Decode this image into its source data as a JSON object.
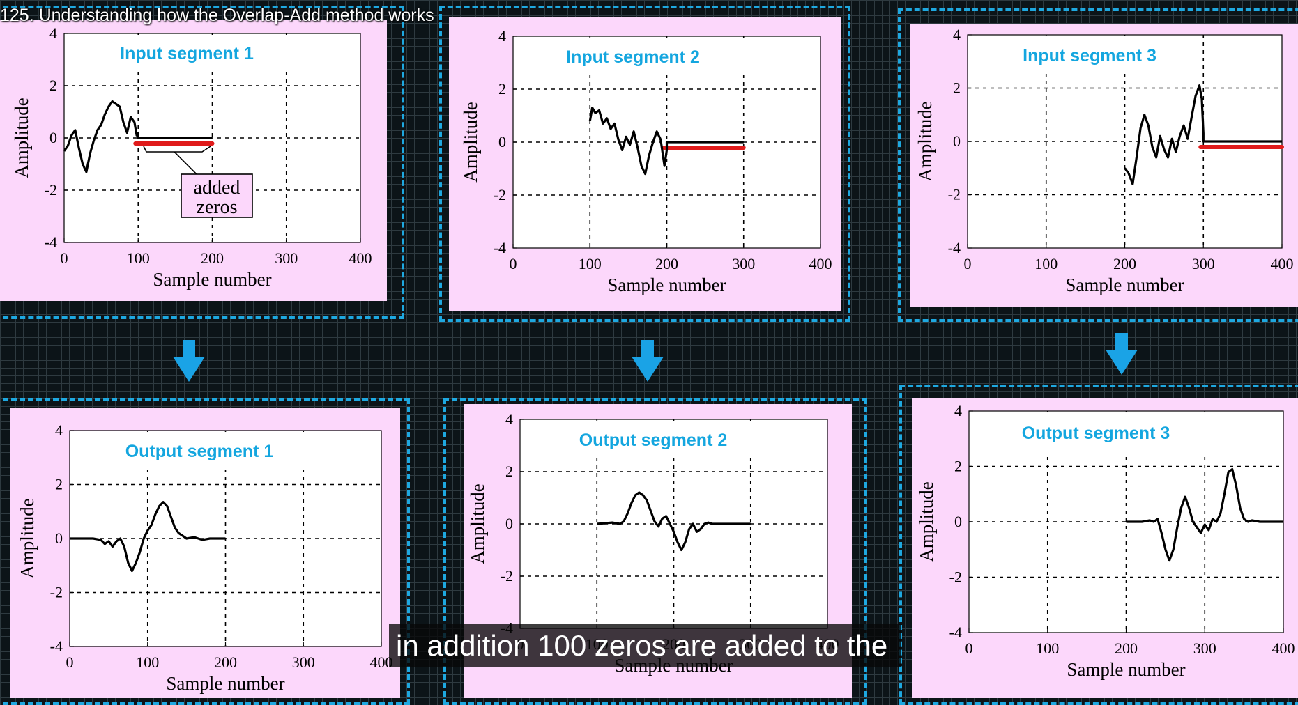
{
  "video_title": "125. Understanding how the Overlap-Add method works",
  "caption": "in addition 100 zeros are added to the",
  "colors": {
    "panel_bg": "#fcd7fb",
    "title_color": "#14a6df",
    "dashed_frame": "#1ea8e0",
    "zero_pad_marker": "#e01b1b",
    "signal": "#000000"
  },
  "annotation": {
    "line1": "added",
    "line2": "zeros"
  },
  "chart_data": [
    {
      "type": "line",
      "title": "Input segment 1",
      "xlabel": "Sample number",
      "ylabel": "Amplitude",
      "xlim": [
        0,
        400
      ],
      "ylim": [
        -4,
        4
      ],
      "xticks": [
        "0",
        "100",
        "200",
        "300",
        "400"
      ],
      "yticks": [
        "-4",
        "-2",
        "0",
        "2",
        "4"
      ],
      "grid": true,
      "zero_pad_range": [
        100,
        200
      ],
      "series": [
        {
          "x": [
            0,
            5,
            10,
            15,
            20,
            25,
            30,
            35,
            40,
            45,
            50,
            55,
            60,
            65,
            70,
            75,
            80,
            85,
            90,
            95,
            98,
            100,
            100,
            150,
            200
          ],
          "y": [
            -0.5,
            -0.3,
            0.1,
            0.3,
            -0.4,
            -1.0,
            -1.3,
            -0.6,
            -0.1,
            0.3,
            0.5,
            0.9,
            1.2,
            1.4,
            1.3,
            1.2,
            0.6,
            0.2,
            0.8,
            0.6,
            0.1,
            0.2,
            0,
            0,
            0
          ]
        }
      ]
    },
    {
      "type": "line",
      "title": "Input segment 2",
      "xlabel": "Sample number",
      "ylabel": "Amplitude",
      "xlim": [
        0,
        400
      ],
      "ylim": [
        -4,
        4
      ],
      "xticks": [
        "0",
        "100",
        "200",
        "300",
        "400"
      ],
      "yticks": [
        "-4",
        "-2",
        "0",
        "2",
        "4"
      ],
      "grid": true,
      "zero_pad_range": [
        200,
        300
      ],
      "series": [
        {
          "x": [
            100,
            103,
            107,
            112,
            117,
            122,
            127,
            132,
            137,
            142,
            147,
            152,
            157,
            162,
            167,
            172,
            177,
            182,
            187,
            192,
            197,
            200,
            200,
            250,
            300
          ],
          "y": [
            0.8,
            1.3,
            1.1,
            1.2,
            0.7,
            0.9,
            0.5,
            0.7,
            0.1,
            -0.3,
            0.2,
            -0.1,
            0.4,
            -0.2,
            -0.9,
            -1.2,
            -0.5,
            0.0,
            0.4,
            0.1,
            -0.9,
            -0.3,
            0,
            0,
            0
          ]
        }
      ]
    },
    {
      "type": "line",
      "title": "Input segment 3",
      "xlabel": "Sample number",
      "ylabel": "Amplitude",
      "xlim": [
        0,
        400
      ],
      "ylim": [
        -4,
        4
      ],
      "xticks": [
        "0",
        "100",
        "200",
        "300",
        "400"
      ],
      "yticks": [
        "-4",
        "-2",
        "0",
        "2",
        "4"
      ],
      "grid": true,
      "zero_pad_range": [
        300,
        400
      ],
      "series": [
        {
          "x": [
            200,
            205,
            210,
            215,
            220,
            225,
            230,
            235,
            240,
            245,
            250,
            255,
            260,
            265,
            270,
            275,
            280,
            285,
            290,
            295,
            298,
            300,
            300,
            350,
            400
          ],
          "y": [
            -1.0,
            -1.2,
            -1.6,
            -0.6,
            0.5,
            1.0,
            0.6,
            -0.2,
            -0.6,
            0.2,
            -0.3,
            -0.6,
            0.1,
            -0.4,
            0.2,
            0.6,
            0.1,
            0.9,
            1.7,
            2.1,
            1.6,
            0.3,
            0,
            0,
            0
          ]
        }
      ]
    },
    {
      "type": "line",
      "title": "Output segment 1",
      "xlabel": "Sample number",
      "ylabel": "Amplitude",
      "xlim": [
        0,
        400
      ],
      "ylim": [
        -4,
        4
      ],
      "xticks": [
        "0",
        "100",
        "200",
        "300",
        "400"
      ],
      "yticks": [
        "-4",
        "-2",
        "0",
        "2",
        "4"
      ],
      "grid": true,
      "series": [
        {
          "x": [
            0,
            20,
            30,
            40,
            45,
            50,
            55,
            60,
            65,
            70,
            75,
            80,
            85,
            90,
            95,
            100,
            105,
            110,
            115,
            120,
            125,
            130,
            135,
            140,
            145,
            150,
            160,
            170,
            180,
            190,
            200
          ],
          "y": [
            0,
            0,
            0,
            -0.05,
            -0.2,
            -0.1,
            -0.3,
            -0.1,
            0.0,
            -0.3,
            -0.9,
            -1.2,
            -0.9,
            -0.5,
            0.0,
            0.3,
            0.5,
            0.9,
            1.2,
            1.35,
            1.2,
            0.8,
            0.4,
            0.2,
            0.1,
            0.0,
            0.05,
            -0.05,
            0,
            0,
            0
          ]
        }
      ]
    },
    {
      "type": "line",
      "title": "Output segment 2",
      "xlabel": "Sample number",
      "ylabel": "Amplitude",
      "xlim": [
        0,
        400
      ],
      "ylim": [
        -4,
        4
      ],
      "xticks": [
        "0",
        "100",
        "200",
        "300",
        "400"
      ],
      "yticks": [
        "-4",
        "-2",
        "0",
        "2",
        "4"
      ],
      "grid": true,
      "series": [
        {
          "x": [
            100,
            120,
            130,
            135,
            140,
            145,
            150,
            155,
            160,
            165,
            170,
            175,
            180,
            185,
            190,
            195,
            200,
            205,
            210,
            215,
            220,
            225,
            230,
            235,
            240,
            245,
            250,
            260,
            270,
            280,
            290,
            300
          ],
          "y": [
            0,
            0.05,
            0.0,
            0.1,
            0.4,
            0.8,
            1.1,
            1.2,
            1.1,
            0.9,
            0.5,
            0.1,
            -0.1,
            0.2,
            0.3,
            0.0,
            -0.3,
            -0.7,
            -1.0,
            -0.7,
            -0.2,
            0.0,
            -0.3,
            -0.2,
            0.0,
            0.05,
            0,
            0,
            0,
            0,
            0,
            0
          ]
        }
      ]
    },
    {
      "type": "line",
      "title": "Output segment 3",
      "xlabel": "Sample number",
      "ylabel": "Amplitude",
      "xlim": [
        0,
        400
      ],
      "ylim": [
        -4,
        4
      ],
      "xticks": [
        "0",
        "100",
        "200",
        "300",
        "400"
      ],
      "yticks": [
        "-4",
        "-2",
        "0",
        "2",
        "4"
      ],
      "grid": true,
      "series": [
        {
          "x": [
            200,
            220,
            230,
            235,
            240,
            245,
            250,
            255,
            260,
            265,
            270,
            275,
            280,
            285,
            290,
            295,
            300,
            305,
            310,
            315,
            320,
            325,
            330,
            335,
            340,
            345,
            350,
            355,
            360,
            370,
            380,
            390,
            400
          ],
          "y": [
            0,
            0,
            0.05,
            0.0,
            0.1,
            -0.4,
            -1.0,
            -1.4,
            -1.0,
            -0.2,
            0.5,
            0.9,
            0.5,
            0.0,
            -0.2,
            -0.4,
            -0.1,
            -0.3,
            0.1,
            0.0,
            0.3,
            1.0,
            1.8,
            1.9,
            1.3,
            0.5,
            0.1,
            0.0,
            0.05,
            0,
            0,
            0,
            0
          ]
        }
      ]
    }
  ]
}
